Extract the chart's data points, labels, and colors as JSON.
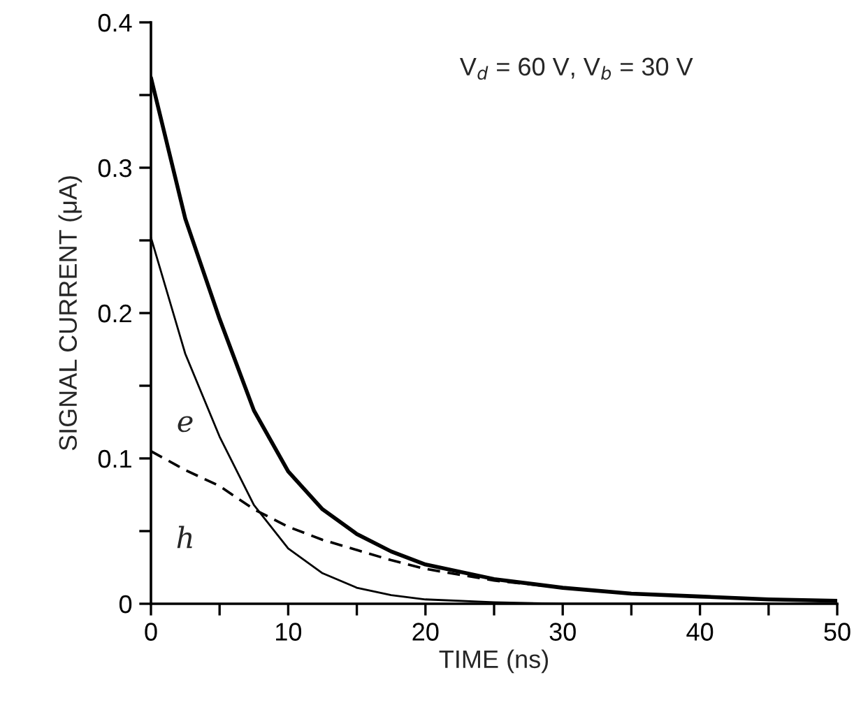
{
  "chart_data": {
    "type": "line",
    "xlabel": "TIME (ns)",
    "ylabel": "SIGNAL CURRENT (μA)",
    "annotations": [
      "V$_{d}$ = 60 V, V$_{b}$ = 30 V"
    ],
    "x": [
      0,
      2.5,
      5,
      7.5,
      10,
      12.5,
      15,
      17.5,
      20,
      25,
      30,
      35,
      40,
      45,
      50
    ],
    "series": [
      {
        "color": "#000000",
        "line_style": "solid",
        "values": [
          0.362,
          0.265,
          0.196,
          0.133,
          0.091,
          0.065,
          0.048,
          0.036,
          0.027,
          0.017,
          0.011,
          0.007,
          0.005,
          0.003,
          0.002
        ]
      },
      {
        "name": "e",
        "color": "#000000",
        "line_style": "solid",
        "values": [
          0.252,
          0.172,
          0.115,
          0.068,
          0.038,
          0.021,
          0.011,
          0.006,
          0.003,
          0.001,
          0,
          0,
          0,
          0,
          0
        ]
      },
      {
        "name": "h",
        "color": "#000000",
        "line_style": "dashed",
        "values": [
          0.105,
          0.092,
          0.081,
          0.065,
          0.053,
          0.044,
          0.037,
          0.03,
          0.024,
          0.016,
          0.011,
          0.007,
          0.005,
          0.003,
          0.002
        ]
      }
    ],
    "xlim": [
      0,
      50
    ],
    "xticks": [
      0,
      {
        "value": 5,
        "label": null
      },
      10,
      {
        "value": 15,
        "label": null
      },
      20,
      {
        "value": 25,
        "label": null
      },
      30,
      {
        "value": 35,
        "label": null
      },
      40,
      {
        "value": 45,
        "label": null
      },
      50
    ],
    "ylim": [
      0,
      0.4
    ],
    "yticks": [
      0,
      {
        "value": 0.05,
        "label": null
      },
      0.1,
      {
        "value": 0.15,
        "label": null
      },
      0.2,
      {
        "value": 0.25,
        "label": null
      },
      0.3,
      {
        "value": 0.35,
        "label": null
      },
      0.4
    ],
    "grid": false,
    "legend": false,
    "marker": "none"
  }
}
